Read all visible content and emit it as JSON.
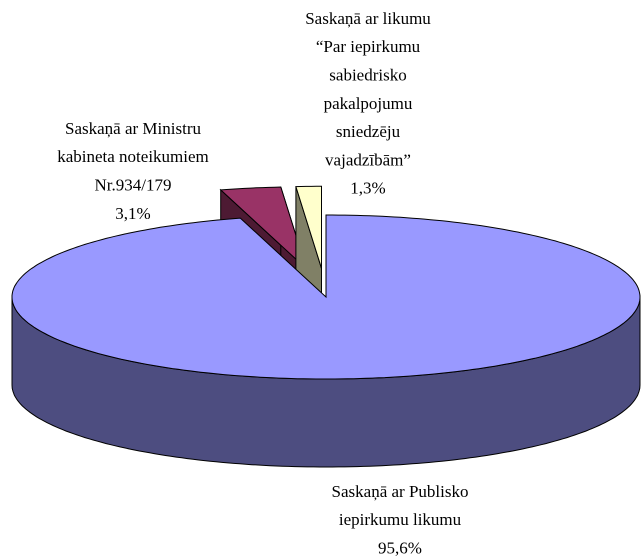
{
  "chart_data": {
    "type": "pie3d",
    "categories": [
      [
        "Saskaņā ar Publisko",
        "iepirkumu likumu"
      ],
      [
        "Saskaņā ar Ministru",
        "kabineta noteikumiem",
        "Nr.934/179"
      ],
      [
        "Saskaņā ar likumu",
        "“Par iepirkumu",
        "sabiedrisko",
        "pakalpojumu",
        "sniedzēju",
        "vajadzībām”"
      ]
    ],
    "values": [
      95.6,
      3.1,
      1.3
    ],
    "value_labels": [
      "95,6%",
      "3,1%",
      "1,3%"
    ],
    "colors": [
      "#9999ff",
      "#993366",
      "#ffffcc"
    ]
  }
}
